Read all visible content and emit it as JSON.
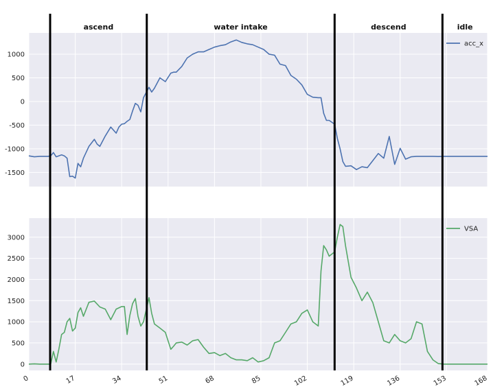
{
  "chart_data": [
    {
      "type": "line",
      "title": "",
      "xlabel": "",
      "ylabel": "",
      "grid": true,
      "legend": "top-right",
      "ylim": [
        -1800,
        1450
      ],
      "yticks": [
        -1500,
        -1000,
        -500,
        0,
        500,
        1000
      ],
      "xlim": [
        0,
        168
      ],
      "series": [
        {
          "name": "acc_x",
          "color": "#4c72b0",
          "x": [
            0,
            2,
            4,
            6,
            7,
            8,
            9,
            10,
            12,
            13,
            14,
            15,
            16,
            17,
            18,
            19,
            20,
            22,
            24,
            25,
            26,
            28,
            30,
            32,
            33,
            34,
            35,
            36,
            37,
            38,
            39,
            40,
            41,
            42,
            44,
            45,
            46,
            48,
            50,
            52,
            53,
            54,
            56,
            58,
            60,
            62,
            64,
            66,
            68,
            70,
            72,
            74,
            76,
            78,
            80,
            82,
            84,
            86,
            88,
            90,
            92,
            94,
            96,
            98,
            100,
            102,
            104,
            106,
            107,
            108,
            109,
            110,
            112,
            113,
            114,
            115,
            116,
            118,
            120,
            122,
            124,
            126,
            128,
            130,
            132,
            134,
            136,
            138,
            140,
            142,
            144,
            146,
            148,
            150,
            152,
            155,
            158,
            162,
            166,
            168
          ],
          "y": [
            -1150,
            -1170,
            -1160,
            -1160,
            -1160,
            -1150,
            -1080,
            -1170,
            -1130,
            -1150,
            -1200,
            -1590,
            -1580,
            -1620,
            -1310,
            -1380,
            -1200,
            -950,
            -800,
            -900,
            -950,
            -730,
            -540,
            -670,
            -540,
            -480,
            -470,
            -420,
            -380,
            -200,
            -40,
            -80,
            -220,
            80,
            300,
            200,
            280,
            500,
            420,
            600,
            620,
            620,
            740,
            920,
            1000,
            1050,
            1050,
            1100,
            1150,
            1180,
            1200,
            1260,
            1300,
            1250,
            1220,
            1200,
            1150,
            1100,
            1000,
            980,
            790,
            760,
            550,
            470,
            350,
            150,
            90,
            80,
            80,
            -250,
            -400,
            -400,
            -480,
            -780,
            -1000,
            -1270,
            -1370,
            -1360,
            -1440,
            -1380,
            -1400,
            -1250,
            -1100,
            -1200,
            -740,
            -1330,
            -990,
            -1220,
            -1170,
            -1160,
            -1160,
            -1160,
            -1160,
            -1165,
            -1160,
            -1160,
            -1160,
            -1160,
            -1160,
            -1160
          ]
        }
      ]
    },
    {
      "type": "line",
      "title": "",
      "xlabel": "",
      "ylabel": "",
      "grid": true,
      "legend": "top-right",
      "ylim": [
        -150,
        3450
      ],
      "yticks": [
        0,
        500,
        1000,
        1500,
        2000,
        2500,
        3000
      ],
      "xlim": [
        0,
        168
      ],
      "xticks": [
        0,
        17,
        34,
        51,
        68,
        85,
        102,
        119,
        136,
        153,
        168
      ],
      "series": [
        {
          "name": "VSA",
          "color": "#55a868",
          "x": [
            0,
            2,
            4,
            6,
            7,
            8,
            9,
            10,
            11,
            12,
            13,
            14,
            15,
            16,
            17,
            18,
            19,
            20,
            22,
            24,
            26,
            28,
            30,
            32,
            34,
            35,
            36,
            37,
            38,
            39,
            40,
            41,
            42,
            44,
            45,
            46,
            48,
            50,
            52,
            53,
            54,
            56,
            58,
            60,
            62,
            64,
            66,
            68,
            70,
            72,
            74,
            76,
            78,
            80,
            82,
            84,
            86,
            88,
            90,
            92,
            94,
            96,
            98,
            100,
            102,
            104,
            106,
            107,
            108,
            109,
            110,
            112,
            113,
            114,
            115,
            116,
            118,
            120,
            122,
            124,
            126,
            128,
            130,
            132,
            134,
            136,
            138,
            140,
            142,
            144,
            146,
            148,
            150,
            152,
            155,
            158,
            162,
            166,
            168
          ],
          "y": [
            0,
            5,
            0,
            0,
            0,
            0,
            300,
            50,
            350,
            700,
            750,
            1000,
            1080,
            780,
            850,
            1220,
            1330,
            1130,
            1460,
            1490,
            1350,
            1300,
            1050,
            1300,
            1360,
            1360,
            700,
            1150,
            1430,
            1550,
            1130,
            900,
            1000,
            1570,
            1200,
            950,
            850,
            750,
            350,
            420,
            500,
            520,
            450,
            550,
            580,
            400,
            250,
            270,
            200,
            250,
            150,
            100,
            100,
            80,
            150,
            50,
            80,
            150,
            500,
            550,
            750,
            950,
            1000,
            1200,
            1280,
            1000,
            900,
            2200,
            2800,
            2700,
            2550,
            2650,
            3000,
            3300,
            3250,
            2800,
            2050,
            1800,
            1500,
            1700,
            1450,
            1000,
            550,
            500,
            700,
            550,
            500,
            600,
            1000,
            950,
            300,
            100,
            10,
            0,
            0,
            0,
            0,
            0,
            0
          ]
        }
      ]
    }
  ],
  "phases": [
    {
      "label": "ascend",
      "start": 7.8,
      "end": 43.2
    },
    {
      "label": "water intake",
      "start": 43.2,
      "end": 112
    },
    {
      "label": "descend",
      "start": 112,
      "end": 151.5
    },
    {
      "label": "idle",
      "start": 151.5,
      "end": 168
    }
  ]
}
